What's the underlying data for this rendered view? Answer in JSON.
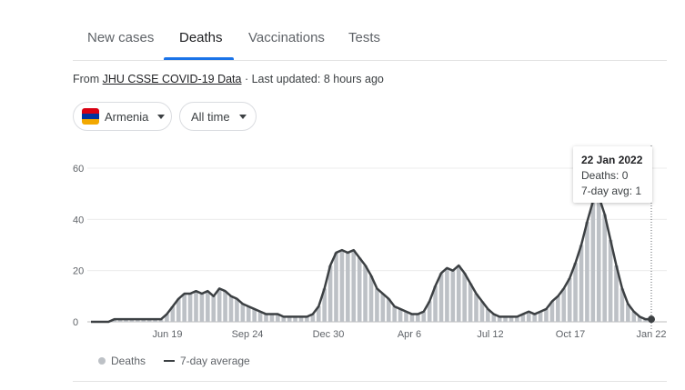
{
  "tabs": [
    {
      "label": "New cases"
    },
    {
      "label": "Deaths"
    },
    {
      "label": "Vaccinations"
    },
    {
      "label": "Tests"
    }
  ],
  "active_tab": "Deaths",
  "source": {
    "prefix": "From",
    "link": "JHU CSSE COVID-19 Data",
    "suffix": "· Last updated: 8 hours ago"
  },
  "filters": {
    "country": "Armenia",
    "range": "All time"
  },
  "colors": {
    "accent": "#1a73e8",
    "bars": "#bdc1c6",
    "avg_line": "#3c4043",
    "flag_red": "#d90012",
    "flag_blue": "#0033a0",
    "flag_orange": "#f2a800"
  },
  "tooltip": {
    "date": "22 Jan 2022",
    "deaths": "Deaths: 0",
    "avg": "7-day avg: 1"
  },
  "legend": {
    "bars": "Deaths",
    "line": "7-day average"
  },
  "chart_data": {
    "type": "bar",
    "title": "",
    "xlabel": "",
    "ylabel": "",
    "ylim": [
      0,
      60
    ],
    "y_ticks": [
      0,
      20,
      40,
      60
    ],
    "x_ticks": [
      "Jun 19",
      "Sep 24",
      "Dec 30",
      "Apr 6",
      "Jul 12",
      "Oct 17",
      "Jan 22"
    ],
    "grid": true,
    "legend_position": "bottom-left",
    "date_range": [
      "2020-03-01",
      "2022-01-22"
    ],
    "series": [
      {
        "name": "Deaths",
        "kind": "bar",
        "weekly_values": [
          0,
          0,
          0,
          0,
          1,
          1,
          1,
          1,
          1,
          1,
          1,
          1,
          1,
          3,
          6,
          9,
          11,
          11,
          12,
          11,
          12,
          10,
          13,
          12,
          10,
          9,
          7,
          6,
          5,
          4,
          3,
          3,
          3,
          2,
          2,
          2,
          2,
          2,
          3,
          6,
          13,
          22,
          27,
          28,
          27,
          28,
          25,
          22,
          18,
          13,
          11,
          9,
          6,
          5,
          4,
          3,
          3,
          4,
          8,
          14,
          19,
          21,
          20,
          22,
          19,
          15,
          11,
          8,
          5,
          3,
          2,
          2,
          2,
          2,
          3,
          4,
          3,
          4,
          5,
          8,
          10,
          13,
          17,
          23,
          30,
          39,
          47,
          49,
          42,
          32,
          22,
          13,
          7,
          4,
          2,
          1,
          0
        ]
      },
      {
        "name": "7-day average",
        "kind": "line",
        "weekly_values": [
          0,
          0,
          0,
          0,
          1,
          1,
          1,
          1,
          1,
          1,
          1,
          1,
          1,
          3,
          6,
          9,
          11,
          11,
          12,
          11,
          12,
          10,
          13,
          12,
          10,
          9,
          7,
          6,
          5,
          4,
          3,
          3,
          3,
          2,
          2,
          2,
          2,
          2,
          3,
          6,
          13,
          22,
          27,
          28,
          27,
          28,
          25,
          22,
          18,
          13,
          11,
          9,
          6,
          5,
          4,
          3,
          3,
          4,
          8,
          14,
          19,
          21,
          20,
          22,
          19,
          15,
          11,
          8,
          5,
          3,
          2,
          2,
          2,
          2,
          3,
          4,
          3,
          4,
          5,
          8,
          10,
          13,
          17,
          23,
          30,
          39,
          47,
          49,
          42,
          32,
          22,
          13,
          7,
          4,
          2,
          1,
          1
        ]
      }
    ]
  }
}
